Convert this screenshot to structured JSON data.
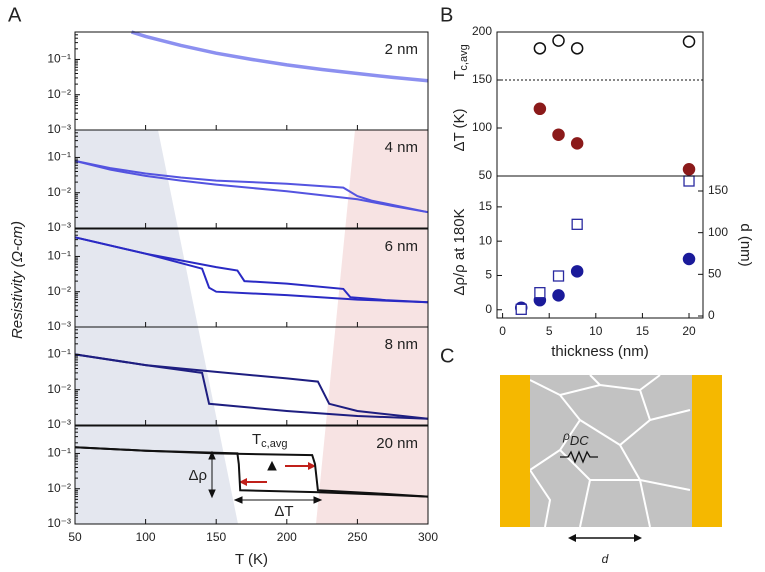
{
  "chart_data": [
    {
      "type": "line",
      "label": "2 nm",
      "ylabel": "Resistivity (Ω-cm)",
      "yscale": "log",
      "xlim": [
        50,
        300
      ],
      "ylim": [
        0.001,
        0.6
      ],
      "yticks": [
        {
          "value": 0.001,
          "label": "10⁻³"
        },
        {
          "value": 0.01,
          "label": "10⁻²"
        },
        {
          "value": 0.1,
          "label": "10⁻¹"
        }
      ],
      "series": [
        {
          "color": "#8c90f0",
          "x": [
            90,
            100,
            125,
            150,
            175,
            200,
            225,
            250,
            275,
            300
          ],
          "values": [
            0.6,
            0.45,
            0.25,
            0.15,
            0.1,
            0.07,
            0.052,
            0.04,
            0.031,
            0.025
          ]
        }
      ]
    },
    {
      "type": "line",
      "label": "4 nm",
      "yscale": "log",
      "xlim": [
        50,
        300
      ],
      "ylim": [
        0.001,
        0.6
      ],
      "yticks": [
        {
          "value": 0.001,
          "label": "10⁻³"
        },
        {
          "value": 0.01,
          "label": "10⁻²"
        },
        {
          "value": 0.1,
          "label": "10⁻¹"
        }
      ],
      "series": [
        {
          "color": "#5454e0",
          "x": [
            50,
            75,
            100,
            125,
            150,
            200,
            250,
            275,
            300
          ],
          "values": [
            0.08,
            0.045,
            0.03,
            0.022,
            0.017,
            0.011,
            0.0065,
            0.0042,
            0.0028
          ]
        },
        {
          "color": "#5454e0",
          "x": [
            50,
            75,
            100,
            125,
            150,
            200,
            240,
            250,
            260,
            300
          ],
          "values": [
            0.08,
            0.05,
            0.035,
            0.027,
            0.022,
            0.018,
            0.014,
            0.008,
            0.006,
            0.0028
          ]
        }
      ]
    },
    {
      "type": "line",
      "label": "6 nm",
      "yscale": "log",
      "xlim": [
        50,
        300
      ],
      "ylim": [
        0.001,
        0.6
      ],
      "yticks": [
        {
          "value": 0.001,
          "label": "10⁻³"
        },
        {
          "value": 0.01,
          "label": "10⁻²"
        },
        {
          "value": 0.1,
          "label": "10⁻¹"
        }
      ],
      "series": [
        {
          "color": "#2a2ac4",
          "x": [
            50,
            100,
            150,
            165,
            170,
            200,
            240,
            245,
            270,
            300
          ],
          "values": [
            0.35,
            0.12,
            0.05,
            0.04,
            0.02,
            0.017,
            0.012,
            0.007,
            0.0058,
            0.005
          ]
        },
        {
          "color": "#2a2ac4",
          "x": [
            50,
            100,
            140,
            145,
            150,
            200,
            250,
            300
          ],
          "values": [
            0.35,
            0.12,
            0.045,
            0.013,
            0.01,
            0.008,
            0.006,
            0.005
          ]
        }
      ]
    },
    {
      "type": "line",
      "label": "8 nm",
      "yscale": "log",
      "xlim": [
        50,
        300
      ],
      "ylim": [
        0.001,
        0.6
      ],
      "yticks": [
        {
          "value": 0.001,
          "label": "10⁻³"
        },
        {
          "value": 0.01,
          "label": "10⁻²"
        },
        {
          "value": 0.1,
          "label": "10⁻¹"
        }
      ],
      "series": [
        {
          "color": "#1e1e80",
          "x": [
            50,
            100,
            150,
            200,
            222,
            230,
            250,
            300
          ],
          "values": [
            0.1,
            0.05,
            0.032,
            0.021,
            0.017,
            0.004,
            0.0025,
            0.0015
          ]
        },
        {
          "color": "#1e1e80",
          "x": [
            50,
            100,
            140,
            145,
            200,
            250,
            300
          ],
          "values": [
            0.1,
            0.05,
            0.03,
            0.004,
            0.0025,
            0.0018,
            0.0015
          ]
        }
      ]
    },
    {
      "type": "line",
      "label": "20 nm",
      "xlabel": "T (K)",
      "yscale": "log",
      "xlim": [
        50,
        300
      ],
      "ylim": [
        0.001,
        0.6
      ],
      "xticks": [
        50,
        100,
        150,
        200,
        250,
        300
      ],
      "yticks": [
        {
          "value": 0.001,
          "label": "10⁻³"
        },
        {
          "value": 0.01,
          "label": "10⁻²"
        },
        {
          "value": 0.1,
          "label": "10⁻¹"
        }
      ],
      "annotations": {
        "tc_main": "T",
        "tc_sub": "c,avg",
        "drho": "Δρ",
        "dT": "ΔT"
      },
      "series": [
        {
          "color": "#111111",
          "x": [
            50,
            100,
            150,
            218,
            220,
            222,
            260,
            300
          ],
          "values": [
            0.15,
            0.12,
            0.1,
            0.09,
            0.05,
            0.009,
            0.0075,
            0.006
          ]
        },
        {
          "color": "#111111",
          "x": [
            50,
            100,
            165,
            166,
            167,
            220,
            260,
            300
          ],
          "values": [
            0.15,
            0.12,
            0.1,
            0.05,
            0.009,
            0.008,
            0.007,
            0.006
          ]
        }
      ]
    },
    {
      "type": "scatter",
      "ylabel": "ΔT (K)",
      "ylabel_top": {
        "main": "T",
        "sub": "c,avg"
      },
      "xlim": [
        -0.6,
        21.5
      ],
      "ylim": [
        50,
        200
      ],
      "yticks": [
        50,
        100,
        150,
        200
      ],
      "hline": {
        "value": 150,
        "style": "dotted"
      },
      "series": [
        {
          "color": "#111111",
          "marker": "open-circle",
          "x": [
            4,
            6,
            8,
            20
          ],
          "values": [
            183,
            191,
            183,
            190
          ]
        },
        {
          "color": "#8b1a1a",
          "marker": "filled-circle",
          "x": [
            4,
            6,
            8,
            20
          ],
          "values": [
            120,
            93,
            84,
            57
          ]
        }
      ]
    },
    {
      "type": "scatter",
      "ylabel": "Δρ/ρ at 180K",
      "xlabel": "thickness (nm)",
      "y2label": "d (nm)",
      "xlim": [
        -0.6,
        21.5
      ],
      "ylim": [
        -1.2,
        19.5
      ],
      "y2lim": [
        -2.4,
        168
      ],
      "xticks": [
        0,
        5,
        10,
        15,
        20
      ],
      "yticks": [
        0,
        5,
        10,
        15
      ],
      "y2ticks": [
        0,
        50,
        100,
        150
      ],
      "series": [
        {
          "color": "#1a1a9a",
          "marker": "filled-circle",
          "x": [
            2,
            4,
            6,
            8,
            20
          ],
          "values": [
            0.3,
            1.4,
            2.1,
            5.6,
            7.4
          ]
        },
        {
          "color": "#2a2aa0",
          "marker": "open-square",
          "axis": "y2",
          "x": [
            2,
            4,
            6,
            8,
            20
          ],
          "values": [
            8,
            28,
            48,
            110,
            162
          ]
        }
      ]
    }
  ],
  "panel_labels": [
    "A",
    "B",
    "C"
  ],
  "diagram": {
    "rho_main": "ρ",
    "rho_sub": "DC",
    "d": "d"
  }
}
